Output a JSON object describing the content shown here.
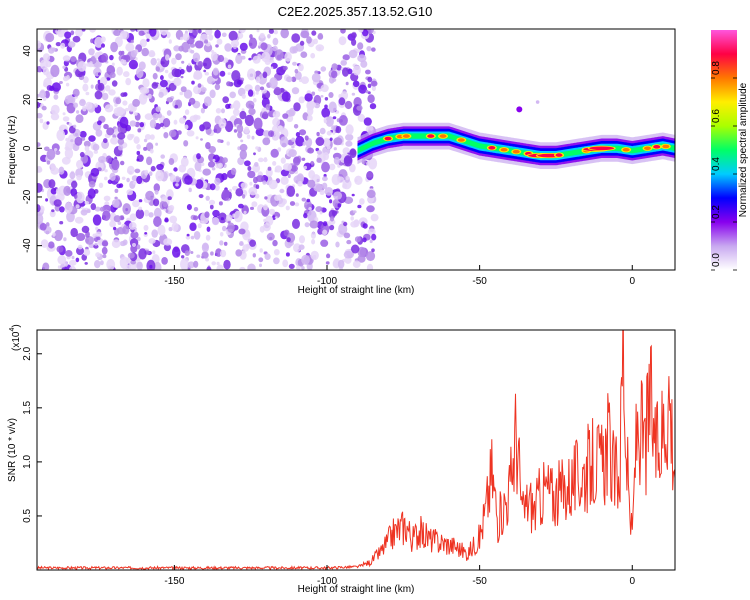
{
  "title": "C2E2.2025.357.13.52.G10",
  "spectrogram": {
    "ylabel": "Frequency (Hz)",
    "xlabel": "Height of straight line (km)",
    "xlim": [
      -195,
      14
    ],
    "ylim": [
      -50,
      49
    ],
    "xticks": [
      "-150",
      "-100",
      "-50",
      "0"
    ],
    "xtick_values": [
      -150,
      -100,
      -50,
      0
    ],
    "yticks": [
      "-40",
      "-20",
      "0",
      "20",
      "40"
    ],
    "ytick_values": [
      -40,
      -20,
      0,
      20,
      40
    ],
    "noise_region_x": [
      -195,
      -87
    ],
    "ridge": {
      "x": [
        -90,
        -85,
        -80,
        -75,
        -70,
        -65,
        -60,
        -55,
        -50,
        -45,
        -40,
        -35,
        -30,
        -25,
        -20,
        -15,
        -10,
        -5,
        0,
        5,
        10,
        14
      ],
      "y": [
        -1,
        2,
        4,
        5,
        5,
        5,
        5,
        3,
        1,
        0,
        -1,
        -2,
        -3,
        -3,
        -2,
        -1,
        0,
        0,
        -1,
        0,
        1,
        0
      ]
    },
    "colormap_colors": [
      "#ffffff",
      "#c8a8f0",
      "#8800ee",
      "#0000ff",
      "#00ccff",
      "#00ff66",
      "#aaff00",
      "#ffee00",
      "#ff7700",
      "#ff0044",
      "#ff55dd"
    ]
  },
  "colorbar": {
    "label": "Normalized spectral amplitude",
    "ticks": [
      "0.0",
      "0.2",
      "0.4",
      "0.6",
      "0.8"
    ],
    "tick_values": [
      0.0,
      0.2,
      0.4,
      0.6,
      0.8
    ],
    "range": [
      0,
      1
    ]
  },
  "chart_data": {
    "type": "line",
    "title": "C2E2.2025.357.13.52.G10",
    "xlabel": "Height of straight line (km)",
    "ylabel": "SNR (10 * v/v)",
    "yscale_note": "(x10",
    "yscale_exp": "4",
    "xlim": [
      -195,
      14
    ],
    "ylim": [
      0,
      2.22
    ],
    "xticks": [
      "-150",
      "-100",
      "-50",
      "0"
    ],
    "xtick_values": [
      -150,
      -100,
      -50,
      0
    ],
    "yticks": [
      "0.5",
      "1.0",
      "1.5",
      "2.0"
    ],
    "ytick_values": [
      0.5,
      1.0,
      1.5,
      2.0
    ],
    "series_color": "#ee3322",
    "x": [
      -195,
      -180,
      -160,
      -140,
      -120,
      -100,
      -90,
      -86,
      -82,
      -78,
      -74,
      -72,
      -70,
      -66,
      -62,
      -58,
      -54,
      -50,
      -48,
      -46,
      -44,
      -42,
      -40,
      -38,
      -36,
      -34,
      -32,
      -30,
      -28,
      -26,
      -24,
      -22,
      -20,
      -18,
      -16,
      -14,
      -12,
      -10,
      -8,
      -6,
      -4,
      -3,
      -2,
      -1,
      0,
      1,
      2,
      4,
      6,
      8,
      10,
      12,
      14
    ],
    "y": [
      0.02,
      0.02,
      0.02,
      0.02,
      0.02,
      0.02,
      0.03,
      0.07,
      0.18,
      0.35,
      0.42,
      0.28,
      0.36,
      0.28,
      0.25,
      0.22,
      0.15,
      0.3,
      0.55,
      0.9,
      0.45,
      0.6,
      0.75,
      1.3,
      0.5,
      0.65,
      0.55,
      0.7,
      0.75,
      0.68,
      0.7,
      0.75,
      0.8,
      0.85,
      0.9,
      0.95,
      1.0,
      0.95,
      1.2,
      0.85,
      0.95,
      2.22,
      1.1,
      0.6,
      0.3,
      1.05,
      1.4,
      1.1,
      1.55,
      1.05,
      1.3,
      1.65,
      0.95
    ]
  }
}
